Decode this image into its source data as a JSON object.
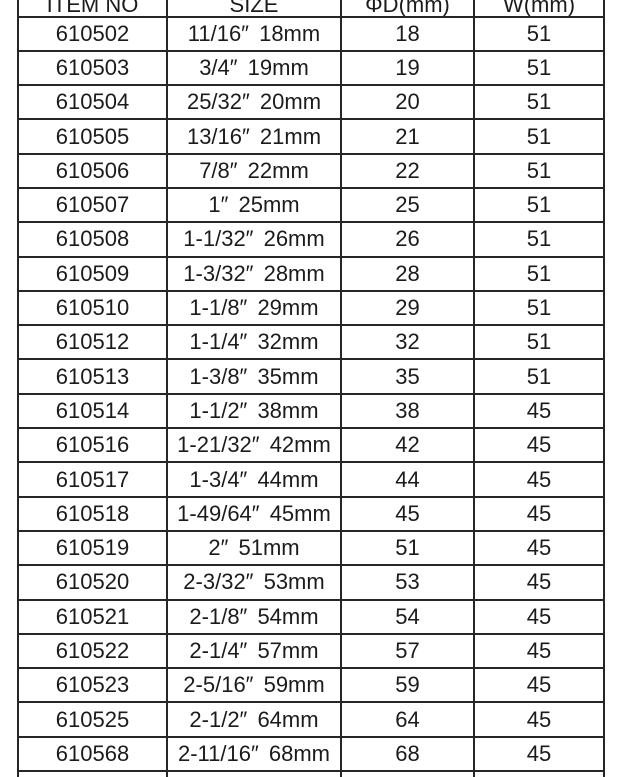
{
  "table": {
    "headers": [
      "ITEM NO",
      "SIZE",
      "ΦD(mm)",
      "W(mm)"
    ],
    "rows": [
      [
        "610502",
        "11/16″ 18mm",
        "18",
        "51"
      ],
      [
        "610503",
        "3/4″ 19mm",
        "19",
        "51"
      ],
      [
        "610504",
        "25/32″ 20mm",
        "20",
        "51"
      ],
      [
        "610505",
        "13/16″ 21mm",
        "21",
        "51"
      ],
      [
        "610506",
        "7/8″ 22mm",
        "22",
        "51"
      ],
      [
        "610507",
        "1″ 25mm",
        "25",
        "51"
      ],
      [
        "610508",
        "1-1/32″ 26mm",
        "26",
        "51"
      ],
      [
        "610509",
        "1-3/32″ 28mm",
        "28",
        "51"
      ],
      [
        "610510",
        "1-1/8″ 29mm",
        "29",
        "51"
      ],
      [
        "610512",
        "1-1/4″ 32mm",
        "32",
        "51"
      ],
      [
        "610513",
        "1-3/8″ 35mm",
        "35",
        "51"
      ],
      [
        "610514",
        "1-1/2″ 38mm",
        "38",
        "45"
      ],
      [
        "610516",
        "1-21/32″ 42mm",
        "42",
        "45"
      ],
      [
        "610517",
        "1-3/4″ 44mm",
        "44",
        "45"
      ],
      [
        "610518",
        "1-49/64″ 45mm",
        "45",
        "45"
      ],
      [
        "610519",
        "2″ 51mm",
        "51",
        "45"
      ],
      [
        "610520",
        "2-3/32″ 53mm",
        "53",
        "45"
      ],
      [
        "610521",
        "2-1/8″ 54mm",
        "54",
        "45"
      ],
      [
        "610522",
        "2-1/4″ 57mm",
        "57",
        "45"
      ],
      [
        "610523",
        "2-5/16″ 59mm",
        "59",
        "45"
      ],
      [
        "610525",
        "2-1/2″ 64mm",
        "64",
        "45"
      ],
      [
        "610568",
        "2-11/16″ 68mm",
        "68",
        "45"
      ]
    ],
    "colors": {
      "text": "#1b1b1b",
      "border": "#262626",
      "background": "#ffffff"
    }
  }
}
